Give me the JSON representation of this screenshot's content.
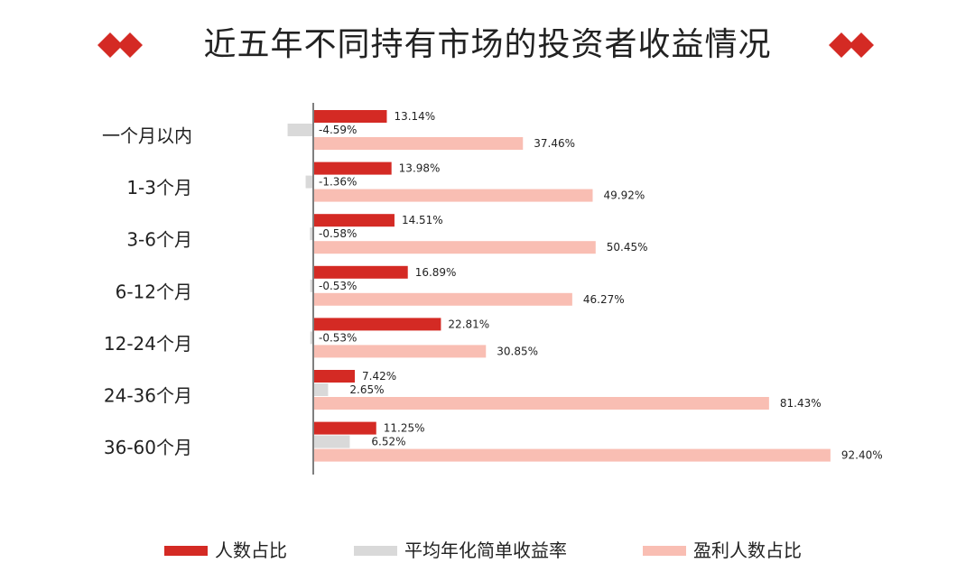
{
  "title": "近五年不同持有市场的投资者收益情况",
  "colors": {
    "people_ratio": "#d42a24",
    "avg_return": "#d9d9d9",
    "profit_ratio": "#f9beb3",
    "axis": "#7f7f7f",
    "diamond": "#d42a24"
  },
  "legend": {
    "items": [
      {
        "label": "人数占比"
      },
      {
        "label": "平均年化简单收益率"
      },
      {
        "label": "盈利人数占比"
      }
    ]
  },
  "chart_data": {
    "type": "bar",
    "orientation": "horizontal",
    "title": "近五年不同持有市场的投资者收益情况",
    "categories": [
      "一个月以内",
      "1-3个月",
      "3-6个月",
      "6-12个月",
      "12-24个月",
      "24-36个月",
      "36-60个月"
    ],
    "series": [
      {
        "name": "人数占比",
        "values": [
          13.14,
          13.98,
          14.51,
          16.89,
          22.81,
          7.42,
          11.25
        ],
        "labels": [
          "13.14%",
          "13.98%",
          "14.51%",
          "16.89%",
          "22.81%",
          "7.42%",
          "11.25%"
        ]
      },
      {
        "name": "平均年化简单收益率",
        "values": [
          -4.59,
          -1.36,
          -0.58,
          -0.53,
          -0.53,
          2.65,
          6.52
        ],
        "labels": [
          "-4.59%",
          "-1.36%",
          "-0.58%",
          "-0.53%",
          "-0.53%",
          "2.65%",
          "6.52%"
        ]
      },
      {
        "name": "盈利人数占比",
        "values": [
          37.46,
          49.92,
          50.45,
          46.27,
          30.85,
          81.43,
          92.4
        ],
        "labels": [
          "37.46%",
          "49.92%",
          "50.45%",
          "46.27%",
          "30.85%",
          "81.43%",
          "92.40%"
        ]
      }
    ],
    "legend_position": "bottom",
    "grid": false
  }
}
